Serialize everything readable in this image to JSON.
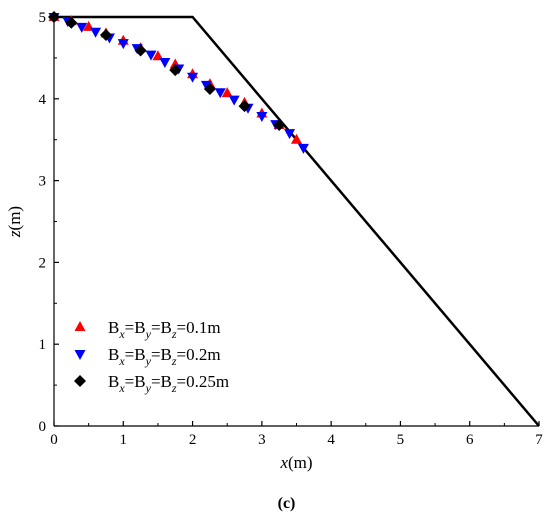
{
  "chart_data": {
    "type": "scatter",
    "xlabel": "x(m)",
    "ylabel": "z(m)",
    "xlim": [
      0,
      7
    ],
    "ylim": [
      0,
      5
    ],
    "x_ticks": [
      "0",
      "1",
      "2",
      "3",
      "4",
      "5",
      "6",
      "7"
    ],
    "y_ticks": [
      "0",
      "1",
      "2",
      "3",
      "4",
      "5"
    ],
    "caption": "(c)",
    "slope_outline": [
      [
        0,
        5
      ],
      [
        2,
        5
      ],
      [
        7,
        0
      ]
    ],
    "series": [
      {
        "name": "Bx=By=Bz=0.1m",
        "label_parts": [
          "B",
          "x",
          "=B",
          "y",
          "=B",
          "z",
          "=0.1m"
        ],
        "marker": "triangle-up",
        "color": "#ff0000",
        "points": [
          [
            0.0,
            5.0
          ],
          [
            0.25,
            4.95
          ],
          [
            0.5,
            4.88
          ],
          [
            0.75,
            4.8
          ],
          [
            1.0,
            4.71
          ],
          [
            1.25,
            4.62
          ],
          [
            1.5,
            4.52
          ],
          [
            1.75,
            4.42
          ],
          [
            2.0,
            4.3
          ],
          [
            2.25,
            4.18
          ],
          [
            2.5,
            4.07
          ],
          [
            2.75,
            3.95
          ],
          [
            3.0,
            3.82
          ],
          [
            3.25,
            3.68
          ],
          [
            3.5,
            3.5
          ]
        ]
      },
      {
        "name": "Bx=By=Bz=0.2m",
        "label_parts": [
          "B",
          "x",
          "=B",
          "y",
          "=B",
          "z",
          "=0.2m"
        ],
        "marker": "triangle-down",
        "color": "#0000ff",
        "points": [
          [
            0.0,
            5.0
          ],
          [
            0.2,
            4.95
          ],
          [
            0.4,
            4.88
          ],
          [
            0.6,
            4.82
          ],
          [
            0.8,
            4.75
          ],
          [
            1.0,
            4.68
          ],
          [
            1.2,
            4.62
          ],
          [
            1.4,
            4.54
          ],
          [
            1.6,
            4.45
          ],
          [
            1.8,
            4.37
          ],
          [
            2.0,
            4.27
          ],
          [
            2.2,
            4.17
          ],
          [
            2.4,
            4.08
          ],
          [
            2.6,
            3.99
          ],
          [
            2.8,
            3.89
          ],
          [
            3.0,
            3.79
          ],
          [
            3.2,
            3.69
          ],
          [
            3.4,
            3.58
          ],
          [
            3.6,
            3.4
          ]
        ]
      },
      {
        "name": "Bx=By=Bz=0.25m",
        "label_parts": [
          "B",
          "x",
          "=B",
          "y",
          "=B",
          "z",
          "=0.25m"
        ],
        "marker": "diamond",
        "color": "#000000",
        "points": [
          [
            0.0,
            5.0
          ],
          [
            0.25,
            4.93
          ],
          [
            0.75,
            4.78
          ],
          [
            1.25,
            4.59
          ],
          [
            1.75,
            4.35
          ],
          [
            2.25,
            4.12
          ],
          [
            2.75,
            3.91
          ],
          [
            3.25,
            3.68
          ]
        ]
      }
    ]
  }
}
